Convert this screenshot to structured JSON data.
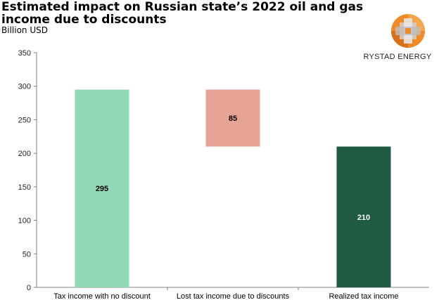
{
  "logo": {
    "text": "RYSTAD ENERGY",
    "icon": "rystad-energy-logo-icon"
  },
  "chart_data": {
    "type": "bar",
    "subtype": "waterfall",
    "title": "Estimated impact on Russian state’s 2022 oil and gas income due to discounts",
    "subtitle": "Billion USD",
    "xlabel": "",
    "ylabel": "",
    "ylim": [
      0,
      350
    ],
    "yticks": [
      0,
      50,
      100,
      150,
      200,
      250,
      300,
      350
    ],
    "grid": false,
    "legend": "none",
    "categories": [
      "Tax income with no discount",
      "Lost tax income due to discounts",
      "Realized tax income"
    ],
    "values": [
      295,
      85,
      210
    ],
    "base": [
      0,
      210,
      0
    ],
    "data_labels": [
      "295",
      "85",
      "210"
    ],
    "colors": [
      "#8fd9b7",
      "#e8a397",
      "#1f5b43"
    ],
    "label_colors": [
      "#000000",
      "#000000",
      "#ffffff"
    ]
  }
}
